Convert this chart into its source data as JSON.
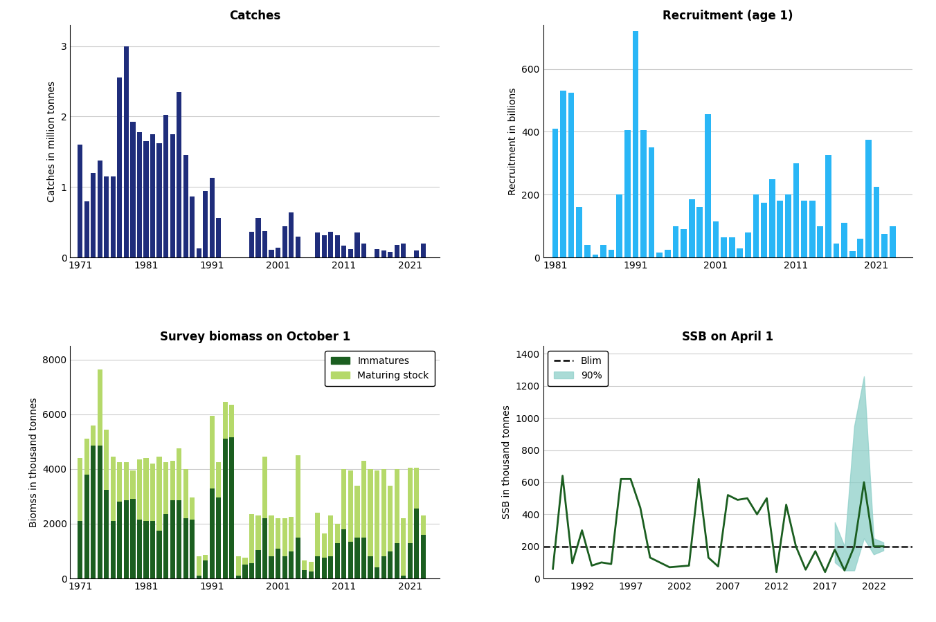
{
  "catches_years": [
    1971,
    1972,
    1973,
    1974,
    1975,
    1976,
    1977,
    1978,
    1979,
    1980,
    1981,
    1982,
    1983,
    1984,
    1985,
    1986,
    1987,
    1988,
    1989,
    1990,
    1991,
    1992,
    1993,
    1994,
    1995,
    1996,
    1997,
    1998,
    1999,
    2000,
    2001,
    2002,
    2003,
    2004,
    2005,
    2006,
    2007,
    2008,
    2009,
    2010,
    2011,
    2012,
    2013,
    2014,
    2015,
    2016,
    2017,
    2018,
    2019,
    2020,
    2021,
    2022,
    2023
  ],
  "catches_values": [
    1.6,
    0.8,
    1.2,
    1.38,
    1.15,
    1.15,
    2.55,
    3.0,
    1.93,
    1.78,
    1.65,
    1.75,
    1.62,
    2.02,
    1.75,
    2.35,
    1.45,
    0.87,
    0.13,
    0.94,
    1.13,
    0.56,
    0.0,
    0.0,
    0.0,
    0.0,
    0.36,
    0.56,
    0.37,
    0.11,
    0.14,
    0.44,
    0.64,
    0.3,
    0.0,
    0.0,
    0.35,
    0.32,
    0.36,
    0.32,
    0.17,
    0.12,
    0.35,
    0.2,
    0.0,
    0.12,
    0.1,
    0.08,
    0.18,
    0.2,
    0.0,
    0.1,
    0.2
  ],
  "recruit_years": [
    1981,
    1982,
    1983,
    1984,
    1985,
    1986,
    1987,
    1988,
    1989,
    1990,
    1991,
    1992,
    1993,
    1994,
    1995,
    1996,
    1997,
    1998,
    1999,
    2000,
    2001,
    2002,
    2003,
    2004,
    2005,
    2006,
    2007,
    2008,
    2009,
    2010,
    2011,
    2012,
    2013,
    2014,
    2015,
    2016,
    2017,
    2018,
    2019,
    2020,
    2021,
    2022,
    2023
  ],
  "recruit_values": [
    410,
    530,
    525,
    160,
    40,
    10,
    40,
    25,
    200,
    405,
    720,
    405,
    350,
    15,
    25,
    100,
    90,
    185,
    160,
    455,
    115,
    65,
    65,
    30,
    80,
    200,
    175,
    250,
    180,
    200,
    300,
    180,
    180,
    100,
    325,
    45,
    110,
    20,
    60,
    375,
    225,
    75,
    100
  ],
  "biomass_years": [
    1971,
    1972,
    1973,
    1974,
    1975,
    1976,
    1977,
    1978,
    1979,
    1980,
    1981,
    1982,
    1983,
    1984,
    1985,
    1986,
    1987,
    1988,
    1989,
    1990,
    1991,
    1992,
    1993,
    1994,
    1995,
    1996,
    1997,
    1998,
    1999,
    2000,
    2001,
    2002,
    2003,
    2004,
    2005,
    2006,
    2007,
    2008,
    2009,
    2010,
    2011,
    2012,
    2013,
    2014,
    2015,
    2016,
    2017,
    2018,
    2019,
    2020,
    2021,
    2022,
    2023
  ],
  "immatures": [
    2100,
    3800,
    4850,
    4850,
    3250,
    2100,
    2800,
    2850,
    2900,
    2150,
    2100,
    2100,
    1750,
    2350,
    2850,
    2850,
    2200,
    2150,
    100,
    650,
    3300,
    2950,
    5100,
    5150,
    100,
    500,
    550,
    1050,
    2200,
    800,
    1100,
    800,
    1000,
    1500,
    300,
    250,
    800,
    750,
    800,
    1300,
    1800,
    1350,
    1500,
    1500,
    800,
    400,
    800,
    1000,
    1300,
    100,
    1300,
    2550,
    1600
  ],
  "maturing": [
    2300,
    1300,
    750,
    2800,
    2200,
    2350,
    1450,
    1400,
    1050,
    2200,
    2300,
    2100,
    2700,
    1900,
    1450,
    1900,
    1800,
    800,
    700,
    200,
    2650,
    1300,
    1350,
    1200,
    700,
    250,
    1800,
    1250,
    2250,
    1500,
    1100,
    1400,
    1250,
    3000,
    350,
    350,
    1600,
    900,
    1500,
    700,
    2200,
    2600,
    1900,
    2800,
    3200,
    3550,
    3200,
    2400,
    2700,
    2100,
    2750,
    1500,
    700
  ],
  "ssb_years": [
    1989,
    1990,
    1991,
    1992,
    1993,
    1994,
    1995,
    1996,
    1997,
    1998,
    1999,
    2000,
    2001,
    2002,
    2003,
    2004,
    2005,
    2006,
    2007,
    2008,
    2009,
    2010,
    2011,
    2012,
    2013,
    2014,
    2015,
    2016,
    2017,
    2018,
    2019,
    2020,
    2021,
    2022,
    2023
  ],
  "ssb_values": [
    60,
    640,
    95,
    300,
    80,
    100,
    90,
    620,
    620,
    440,
    130,
    100,
    70,
    75,
    80,
    620,
    130,
    75,
    520,
    490,
    500,
    400,
    500,
    40,
    460,
    200,
    55,
    170,
    40,
    180,
    50,
    200,
    600,
    200,
    200
  ],
  "ssb_lower": [
    null,
    null,
    null,
    null,
    null,
    null,
    null,
    null,
    null,
    null,
    null,
    null,
    null,
    null,
    null,
    null,
    null,
    null,
    null,
    null,
    null,
    null,
    null,
    null,
    null,
    null,
    null,
    null,
    null,
    100,
    50,
    50,
    250,
    150,
    175
  ],
  "ssb_upper": [
    null,
    null,
    null,
    null,
    null,
    null,
    null,
    null,
    null,
    null,
    null,
    null,
    null,
    null,
    null,
    null,
    null,
    null,
    null,
    null,
    null,
    null,
    null,
    null,
    null,
    null,
    null,
    null,
    null,
    350,
    200,
    950,
    1260,
    250,
    225
  ],
  "blim": 200,
  "catches_color": "#1F2D7B",
  "recruit_color": "#29b6f6",
  "immatures_color": "#1b5e20",
  "maturing_color": "#b5d96a",
  "ssb_line_color": "#1b5e20",
  "ssb_fill_color": "#8ecfc9",
  "blim_color": "#111111"
}
